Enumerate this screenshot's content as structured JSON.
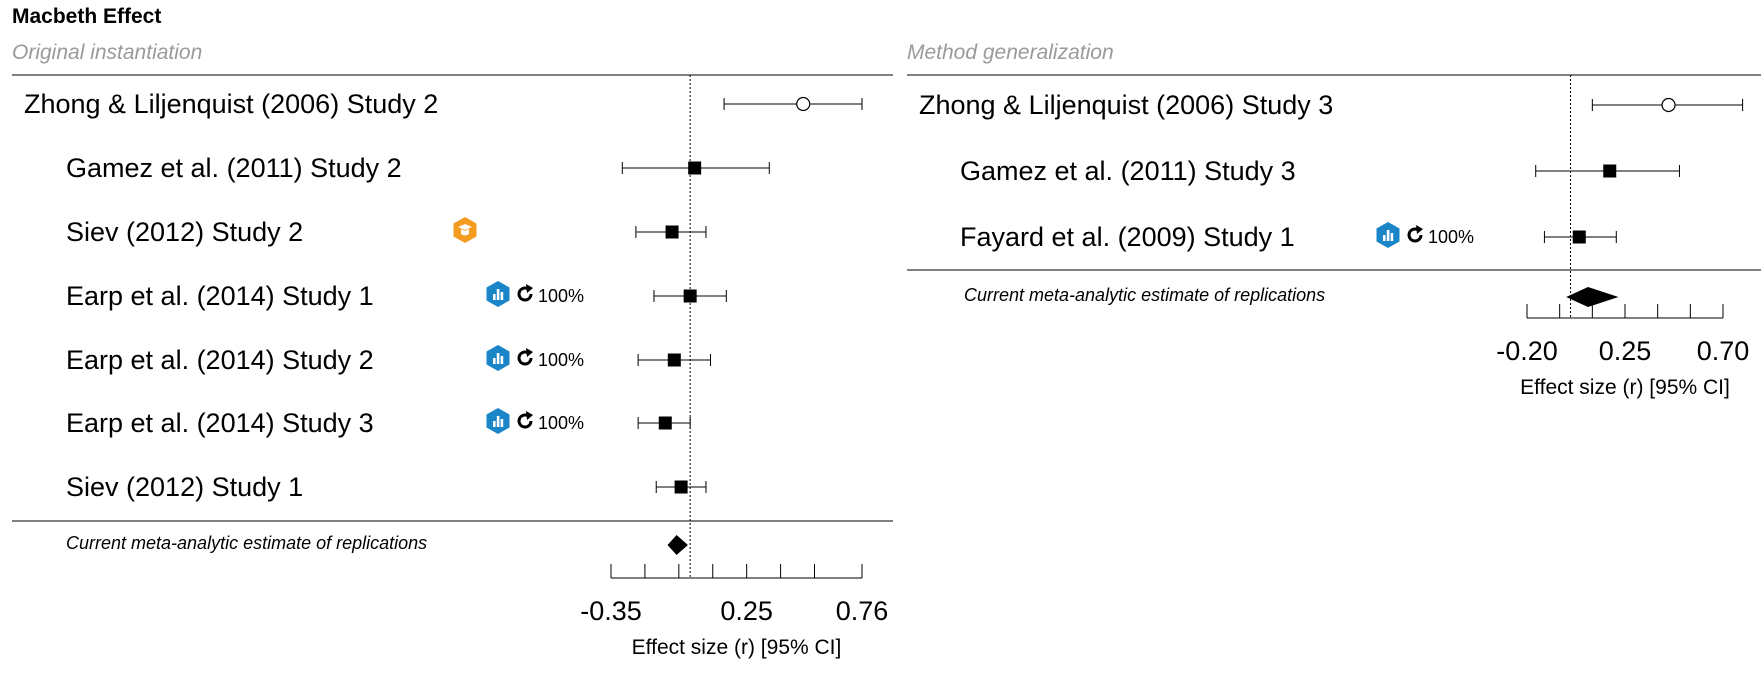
{
  "title": "Macbeth Effect",
  "colors": {
    "badge_blue": "#1a86c8",
    "badge_orange": "#f39c1f",
    "subtitle_gray": "#9a9a9a"
  },
  "chart_data": [
    {
      "type": "forest",
      "subtitle": "Original instantiation",
      "xlabel": "Effect size (r) [95% CI]",
      "xticks": [
        -0.35,
        -0.2,
        -0.05,
        0.1,
        0.25,
        0.4,
        0.55,
        0.76
      ],
      "xtick_labels": [
        "-0.35",
        "",
        "",
        "",
        "0.25",
        "",
        "",
        "0.76"
      ],
      "reference_line": 0,
      "original": {
        "label": "Zhong & Liljenquist (2006) Study 2",
        "estimate": 0.5,
        "ci": [
          0.15,
          0.76
        ]
      },
      "replications": [
        {
          "label": "Gamez et al. (2011) Study 2",
          "estimate": 0.02,
          "ci": [
            -0.3,
            0.35
          ],
          "badge": ""
        },
        {
          "label": "Siev (2012) Study 2",
          "estimate": -0.08,
          "ci": [
            -0.24,
            0.07
          ],
          "badge": "orange"
        },
        {
          "label": "Earp et al. (2014) Study 1",
          "estimate": 0.0,
          "ci": [
            -0.16,
            0.16
          ],
          "badge": "blue",
          "badge_text": "100%"
        },
        {
          "label": "Earp et al. (2014) Study 2",
          "estimate": -0.07,
          "ci": [
            -0.23,
            0.09
          ],
          "badge": "blue",
          "badge_text": "100%"
        },
        {
          "label": "Earp et al. (2014) Study 3",
          "estimate": -0.11,
          "ci": [
            -0.23,
            0.0
          ],
          "badge": "blue",
          "badge_text": "100%"
        },
        {
          "label": "Siev (2012) Study 1",
          "estimate": -0.04,
          "ci": [
            -0.15,
            0.07
          ],
          "badge": ""
        }
      ],
      "meta": {
        "label": "Current meta-analytic estimate of replications",
        "estimate": -0.06,
        "ci": [
          -0.1,
          -0.01
        ]
      }
    },
    {
      "type": "forest",
      "subtitle": "Method generalization",
      "xlabel": "Effect size (r) [95% CI]",
      "xticks": [
        -0.2,
        -0.05,
        0.1,
        0.25,
        0.4,
        0.55,
        0.7
      ],
      "xtick_labels": [
        "-0.20",
        "",
        "",
        "0.25",
        "",
        "",
        "0.70"
      ],
      "reference_line": 0,
      "original": {
        "label": "Zhong & Liljenquist (2006) Study 3",
        "estimate": 0.45,
        "ci": [
          0.1,
          0.79
        ]
      },
      "replications": [
        {
          "label": "Gamez et al. (2011) Study 3",
          "estimate": 0.18,
          "ci": [
            -0.16,
            0.5
          ],
          "badge": ""
        },
        {
          "label": "Fayard et al. (2009) Study 1",
          "estimate": 0.04,
          "ci": [
            -0.12,
            0.21
          ],
          "badge": "blue",
          "badge_text": "100%"
        }
      ],
      "meta": {
        "label": "Current meta-analytic estimate of replications",
        "estimate": 0.08,
        "ci": [
          -0.02,
          0.22
        ]
      }
    }
  ]
}
